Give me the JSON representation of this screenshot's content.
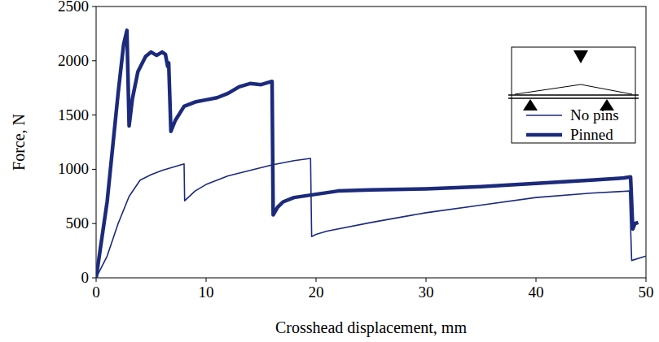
{
  "chart_data": {
    "type": "line",
    "x_label": "Crosshead displacement, mm",
    "y_label": "Force, N",
    "xlim": [
      0,
      50
    ],
    "xticks": [
      0,
      10,
      20,
      30,
      40,
      50
    ],
    "ylim": [
      0,
      2500
    ],
    "yticks": [
      0,
      500,
      1000,
      1500,
      2000,
      2500
    ],
    "grid": false,
    "legend": "upper right",
    "series": [
      {
        "name": "No pins",
        "color": "#1c2a7c",
        "line_style": "thin",
        "x": [
          0,
          1,
          2,
          3,
          4,
          5,
          6,
          7,
          8,
          8.05,
          9,
          10,
          12,
          14,
          16,
          18,
          19.5,
          19.6,
          20,
          21,
          25,
          30,
          35,
          40,
          45,
          48.5,
          48.7,
          50
        ],
        "values": [
          0,
          200,
          500,
          750,
          900,
          950,
          990,
          1020,
          1050,
          710,
          800,
          860,
          940,
          990,
          1040,
          1080,
          1100,
          380,
          400,
          430,
          510,
          600,
          670,
          740,
          780,
          800,
          160,
          200
        ]
      },
      {
        "name": "Pinned",
        "color": "#1c2a7c",
        "line_style": "thick",
        "x": [
          0,
          1,
          2,
          2.5,
          2.8,
          3,
          3.3,
          3.8,
          4.5,
          5,
          5.5,
          6,
          6.3,
          6.5,
          6.6,
          6.8,
          7.2,
          8,
          9,
          10,
          11,
          12,
          13,
          14,
          15,
          16,
          16.1,
          16.5,
          17,
          18,
          20,
          22,
          25,
          30,
          35,
          40,
          45,
          48,
          48.6,
          48.8,
          49,
          49.3
        ],
        "values": [
          0,
          700,
          1700,
          2150,
          2280,
          1400,
          1650,
          1900,
          2040,
          2080,
          2050,
          2080,
          2060,
          1950,
          1980,
          1350,
          1450,
          1580,
          1620,
          1640,
          1660,
          1700,
          1760,
          1790,
          1780,
          1810,
          580,
          650,
          700,
          740,
          770,
          800,
          810,
          820,
          840,
          870,
          900,
          920,
          930,
          450,
          500,
          510
        ]
      }
    ]
  }
}
